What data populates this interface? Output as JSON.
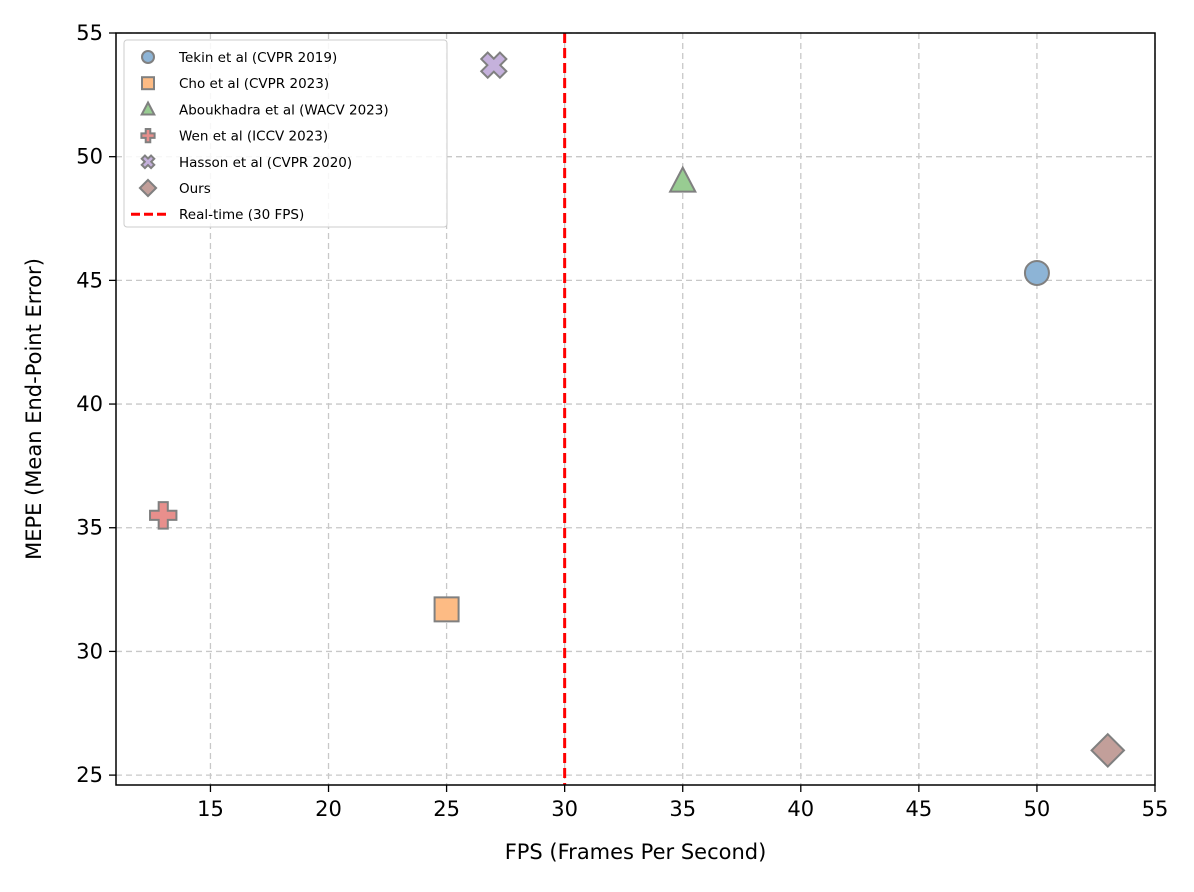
{
  "chart_data": {
    "type": "scatter",
    "xlabel": "FPS (Frames Per Second)",
    "ylabel": "MEPE (Mean End-Point Error)",
    "xlim": [
      11,
      55
    ],
    "ylim": [
      24.6,
      55
    ],
    "xticks": [
      15,
      20,
      25,
      30,
      35,
      40,
      45,
      50,
      55
    ],
    "yticks": [
      25,
      30,
      35,
      40,
      45,
      50,
      55
    ],
    "grid": true,
    "legend_position": "upper-left",
    "series": [
      {
        "name": "Tekin et al (CVPR 2019)",
        "marker": "circle",
        "color": "#8db4d6",
        "points": [
          {
            "x": 50,
            "y": 45.3
          }
        ]
      },
      {
        "name": "Cho et al (CVPR 2023)",
        "marker": "square",
        "color": "#fdbb84",
        "points": [
          {
            "x": 25,
            "y": 31.7
          }
        ]
      },
      {
        "name": "Aboukhadra et al (WACV 2023)",
        "marker": "triangle",
        "color": "#98cc92",
        "points": [
          {
            "x": 35,
            "y": 49
          }
        ]
      },
      {
        "name": "Wen et al (ICCV 2023)",
        "marker": "plus",
        "color": "#e88f8c",
        "points": [
          {
            "x": 13,
            "y": 35.5
          }
        ]
      },
      {
        "name": "Hasson et al (CVPR 2020)",
        "marker": "x",
        "color": "#c5b1dc",
        "points": [
          {
            "x": 27,
            "y": 53.7
          }
        ]
      },
      {
        "name": "Ours",
        "marker": "diamond",
        "color": "#c29f9a",
        "points": [
          {
            "x": 53,
            "y": 26
          }
        ]
      }
    ],
    "reference_lines": [
      {
        "name": "Real-time (30 FPS)",
        "axis": "x",
        "value": 30,
        "color": "#ff0000",
        "style": "dashed"
      }
    ],
    "marker_edge_color": "#808080"
  }
}
